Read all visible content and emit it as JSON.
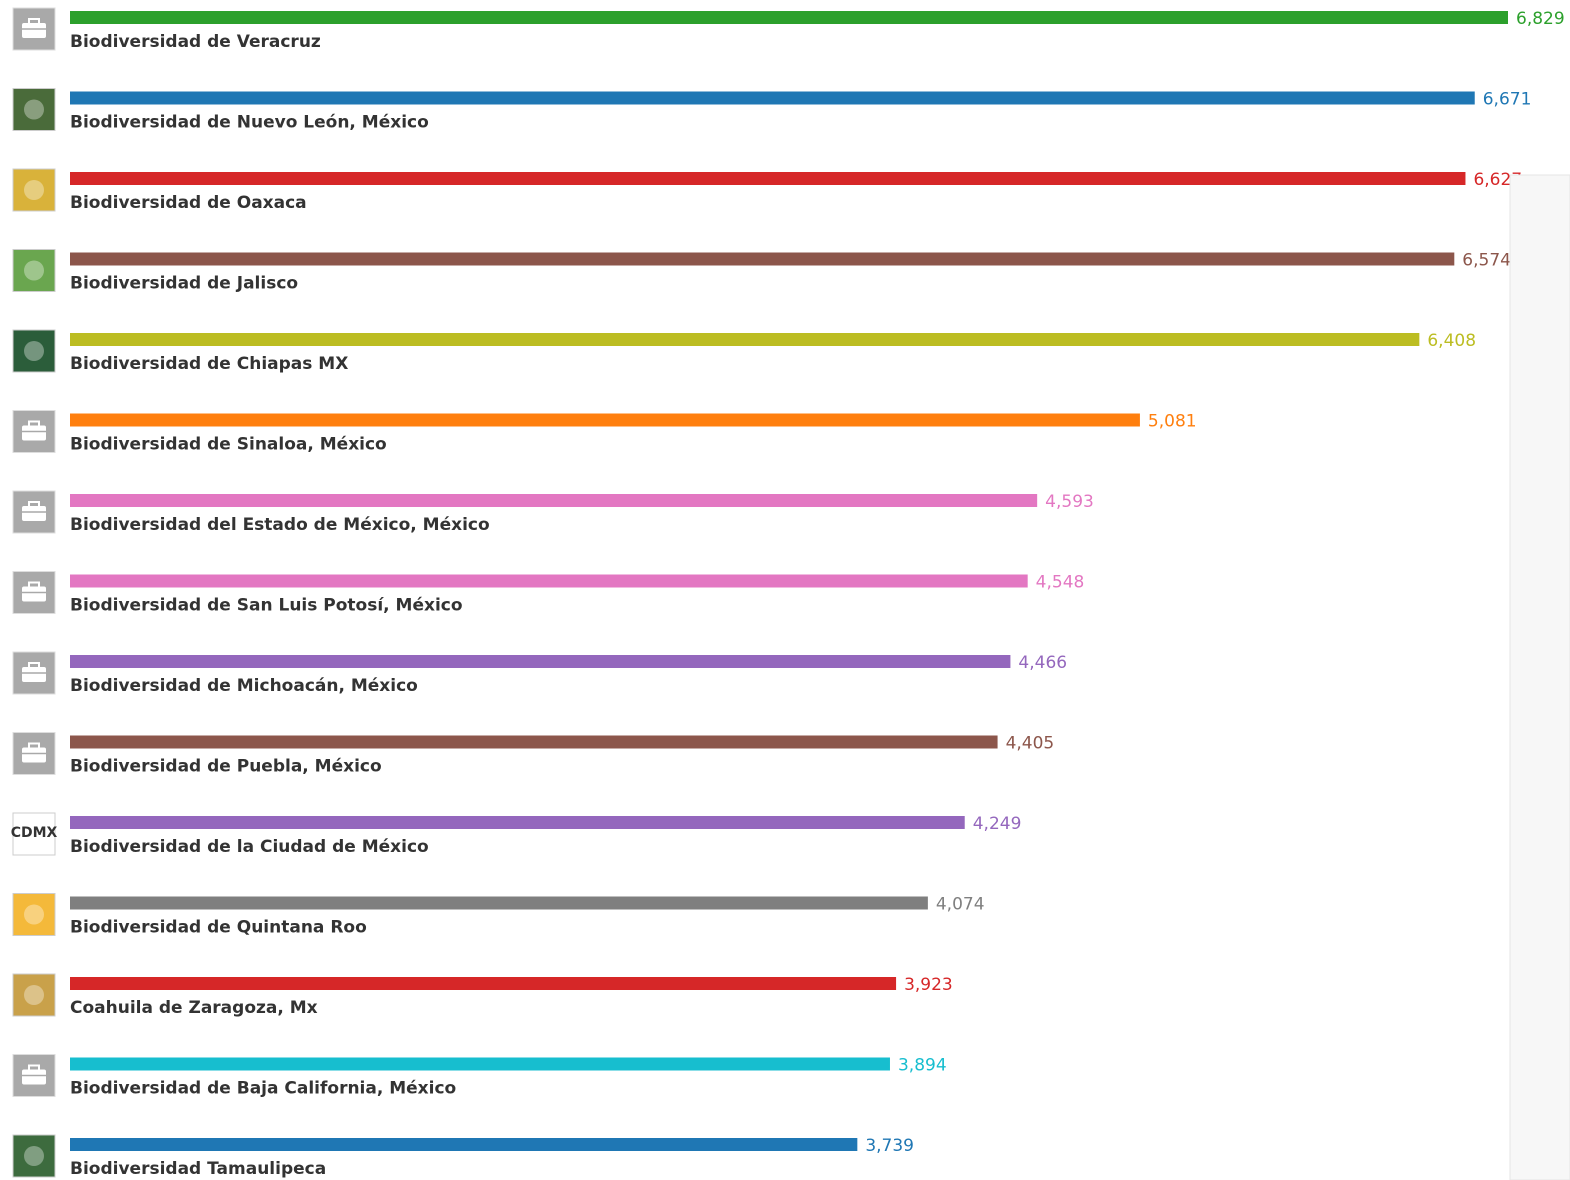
{
  "chart_data": {
    "type": "bar",
    "orientation": "horizontal",
    "categories": [
      "Biodiversidad de Veracruz",
      "Biodiversidad de Nuevo León, México",
      "Biodiversidad de Oaxaca",
      "Biodiversidad de Jalisco",
      "Biodiversidad de Chiapas MX",
      "Biodiversidad de Sinaloa, México",
      "Biodiversidad del Estado de México, México",
      "Biodiversidad de San Luis Potosí, México",
      "Biodiversidad de Michoacán, México",
      "Biodiversidad de Puebla, México",
      "Biodiversidad de la Ciudad de México",
      "Biodiversidad de Quintana Roo",
      "Coahuila de Zaragoza, Mx",
      "Biodiversidad de Baja California, México",
      "Biodiversidad Tamaulipeca"
    ],
    "values": [
      6829,
      6671,
      6627,
      6574,
      6408,
      5081,
      4593,
      4548,
      4466,
      4405,
      4249,
      4074,
      3923,
      3894,
      3739
    ],
    "value_labels": [
      "6,829",
      "6,671",
      "6,627",
      "6,574",
      "6,408",
      "5,081",
      "4,593",
      "4,548",
      "4,466",
      "4,405",
      "4,249",
      "4,074",
      "3,923",
      "3,894",
      "3,739"
    ],
    "colors": [
      "#2ca02c",
      "#1f77b4",
      "#d62728",
      "#8c564b",
      "#bcbd22",
      "#ff7f0e",
      "#e377c2",
      "#e377c2",
      "#9467bd",
      "#8c564b",
      "#9467bd",
      "#7f7f7f",
      "#d62728",
      "#17becf",
      "#1f77b4"
    ]
  }
}
